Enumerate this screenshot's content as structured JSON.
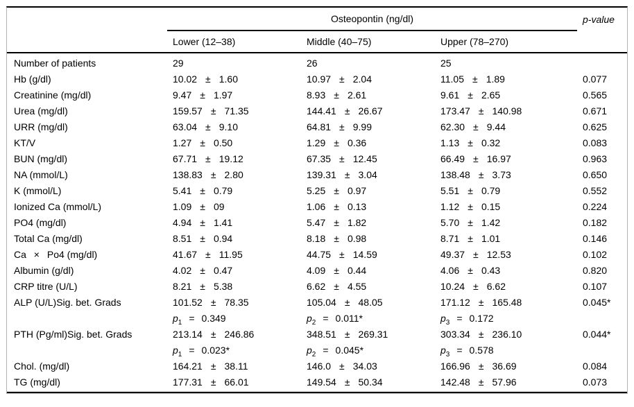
{
  "symbols": {
    "plus_minus": "±",
    "equals": "=",
    "p": "p"
  },
  "header": {
    "group_title": "Osteopontin (ng/dl)",
    "p_value": "p-value",
    "subcolumns": [
      "Lower (12–38)",
      "Middle (40–75)",
      "Upper (78–270)"
    ]
  },
  "rows": [
    {
      "label": "Number of patients",
      "cells": [
        {
          "text": "29"
        },
        {
          "text": "26"
        },
        {
          "text": "25"
        }
      ],
      "p": ""
    },
    {
      "label": "Hb (g/dl)",
      "cells": [
        {
          "mean": "10.02",
          "sd": "1.60"
        },
        {
          "mean": "10.97",
          "sd": "2.04"
        },
        {
          "mean": "11.05",
          "sd": "1.89"
        }
      ],
      "p": "0.077"
    },
    {
      "label": "Creatinine (mg/dl)",
      "cells": [
        {
          "mean": "9.47",
          "sd": "1.97"
        },
        {
          "mean": "8.93",
          "sd": "2.61"
        },
        {
          "mean": "9.61",
          "sd": "2.65"
        }
      ],
      "p": "0.565"
    },
    {
      "label": "Urea (mg/dl)",
      "cells": [
        {
          "mean": "159.57",
          "sd": "71.35"
        },
        {
          "mean": "144.41",
          "sd": "26.67"
        },
        {
          "mean": "173.47",
          "sd": "140.98"
        }
      ],
      "p": "0.671"
    },
    {
      "label": "URR (mg/dl)",
      "cells": [
        {
          "mean": "63.04",
          "sd": "9.10"
        },
        {
          "mean": "64.81",
          "sd": "9.99"
        },
        {
          "mean": "62.30",
          "sd": "9.44"
        }
      ],
      "p": "0.625"
    },
    {
      "label": "KT/V",
      "cells": [
        {
          "mean": "1.27",
          "sd": "0.50"
        },
        {
          "mean": "1.29",
          "sd": "0.36"
        },
        {
          "mean": "1.13",
          "sd": "0.32"
        }
      ],
      "p": "0.083"
    },
    {
      "label": "BUN (mg/dl)",
      "cells": [
        {
          "mean": "67.71",
          "sd": "19.12"
        },
        {
          "mean": "67.35",
          "sd": "12.45"
        },
        {
          "mean": "66.49",
          "sd": "16.97"
        }
      ],
      "p": "0.963"
    },
    {
      "label": "NA (mmol/L)",
      "cells": [
        {
          "mean": "138.83",
          "sd": "2.80"
        },
        {
          "mean": "139.31",
          "sd": "3.04"
        },
        {
          "mean": "138.48",
          "sd": "3.73"
        }
      ],
      "p": "0.650"
    },
    {
      "label": "K (mmol/L)",
      "cells": [
        {
          "mean": "5.41",
          "sd": "0.79"
        },
        {
          "mean": "5.25",
          "sd": "0.97"
        },
        {
          "mean": "5.51",
          "sd": "0.79"
        }
      ],
      "p": "0.552"
    },
    {
      "label": "Ionized Ca (mmol/L)",
      "cells": [
        {
          "mean": "1.09",
          "sd": "09"
        },
        {
          "mean": "1.06",
          "sd": "0.13"
        },
        {
          "mean": "1.12",
          "sd": "0.15"
        }
      ],
      "p": "0.224"
    },
    {
      "label": "PO4 (mg/dl)",
      "cells": [
        {
          "mean": "4.94",
          "sd": "1.41"
        },
        {
          "mean": "5.47",
          "sd": "1.82"
        },
        {
          "mean": "5.70",
          "sd": "1.42"
        }
      ],
      "p": "0.182"
    },
    {
      "label": "Total Ca (mg/dl)",
      "cells": [
        {
          "mean": "8.51",
          "sd": "0.94"
        },
        {
          "mean": "8.18",
          "sd": "0.98"
        },
        {
          "mean": "8.71",
          "sd": "1.01"
        }
      ],
      "p": "0.146"
    },
    {
      "label": "Ca  ×  Po4 (mg/dl)",
      "cells": [
        {
          "mean": "41.67",
          "sd": "11.95"
        },
        {
          "mean": "44.75",
          "sd": "14.59"
        },
        {
          "mean": "49.37",
          "sd": "12.53"
        }
      ],
      "p": "0.102"
    },
    {
      "label": "Albumin (g/dl)",
      "cells": [
        {
          "mean": "4.02",
          "sd": "0.47"
        },
        {
          "mean": "4.09",
          "sd": "0.44"
        },
        {
          "mean": "4.06",
          "sd": "0.43"
        }
      ],
      "p": "0.820"
    },
    {
      "label": "CRP titre (U/L)",
      "cells": [
        {
          "mean": "8.21",
          "sd": "5.38"
        },
        {
          "mean": "6.62",
          "sd": "4.55"
        },
        {
          "mean": "10.24",
          "sd": "6.62"
        }
      ],
      "p": "0.107"
    },
    {
      "label": "ALP (U/L)Sig. bet. Grads",
      "cells": [
        {
          "mean": "101.52",
          "sd": "78.35"
        },
        {
          "mean": "105.04",
          "sd": "48.05"
        },
        {
          "mean": "171.12",
          "sd": "165.48"
        }
      ],
      "p": "0.045*"
    },
    {
      "label": "",
      "cells": [
        {
          "sub": "1",
          "val": "0.349"
        },
        {
          "sub": "2",
          "val": "0.011*"
        },
        {
          "sub": "3",
          "val": "0.172"
        }
      ],
      "p": ""
    },
    {
      "label": "PTH (Pg/ml)Sig. bet. Grads",
      "cells": [
        {
          "mean": "213.14",
          "sd": "246.86"
        },
        {
          "mean": "348.51",
          "sd": "269.31"
        },
        {
          "mean": "303.34",
          "sd": "236.10"
        }
      ],
      "p": "0.044*"
    },
    {
      "label": "",
      "cells": [
        {
          "sub": "1",
          "val": "0.023*"
        },
        {
          "sub": "2",
          "val": "0.045*"
        },
        {
          "sub": "3",
          "val": "0.578"
        }
      ],
      "p": ""
    },
    {
      "label": "Chol. (mg/dl)",
      "cells": [
        {
          "mean": "164.21",
          "sd": "38.11"
        },
        {
          "mean": "146.0",
          "sd": "34.03"
        },
        {
          "mean": "166.96",
          "sd": "36.69"
        }
      ],
      "p": "0.084"
    },
    {
      "label": "TG (mg/dl)",
      "cells": [
        {
          "mean": "177.31",
          "sd": "66.01"
        },
        {
          "mean": "149.54",
          "sd": "50.34"
        },
        {
          "mean": "142.48",
          "sd": "57.96"
        }
      ],
      "p": "0.073"
    }
  ]
}
